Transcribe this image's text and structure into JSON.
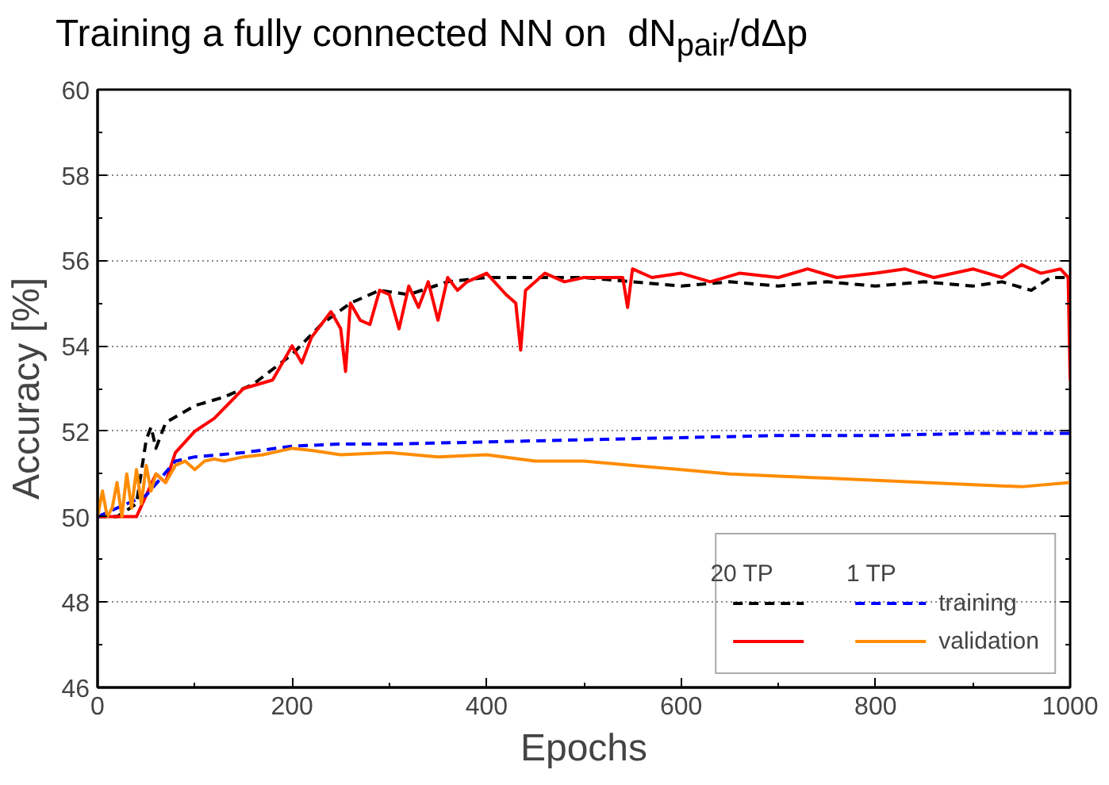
{
  "chart_data": {
    "type": "line",
    "title": "Training a fully connected NN on  dN$_{pair}$/dΔp",
    "xlabel": "Epochs",
    "ylabel": "Accuracy [%]",
    "xlim": [
      0,
      1000
    ],
    "ylim": [
      46,
      60
    ],
    "xticks": [
      0,
      200,
      400,
      600,
      800,
      1000
    ],
    "yticks": [
      46,
      48,
      50,
      52,
      54,
      56,
      58,
      60
    ],
    "grid": "y",
    "legend": "bottom right",
    "annotations": [
      "20 TP",
      "1 TP"
    ],
    "series": [
      {
        "color": "#000000",
        "line_style": "dashed",
        "x": [
          0,
          20,
          40,
          50,
          55,
          60,
          70,
          100,
          130,
          160,
          200,
          230,
          260,
          290,
          320,
          360,
          400,
          450,
          500,
          550,
          600,
          650,
          700,
          750,
          800,
          850,
          900,
          930,
          960,
          980,
          1000
        ],
        "values": [
          50,
          50,
          50.3,
          51.8,
          52.1,
          51.6,
          52.2,
          52.6,
          52.8,
          53.1,
          53.8,
          54.5,
          55.0,
          55.3,
          55.2,
          55.5,
          55.6,
          55.6,
          55.6,
          55.5,
          55.4,
          55.5,
          55.4,
          55.5,
          55.4,
          55.5,
          55.4,
          55.5,
          55.3,
          55.6,
          55.6
        ]
      },
      {
        "color": "#ff0000",
        "line_style": "solid",
        "x": [
          0,
          40,
          50,
          60,
          70,
          80,
          100,
          120,
          150,
          180,
          200,
          210,
          220,
          230,
          240,
          250,
          255,
          260,
          270,
          280,
          290,
          300,
          310,
          320,
          330,
          340,
          350,
          360,
          370,
          380,
          400,
          420,
          430,
          435,
          440,
          460,
          480,
          500,
          520,
          540,
          545,
          550,
          570,
          600,
          630,
          660,
          700,
          730,
          760,
          800,
          830,
          860,
          900,
          930,
          950,
          970,
          990,
          998,
          1000
        ],
        "values": [
          50,
          50,
          50.5,
          51.0,
          50.8,
          51.5,
          52.0,
          52.3,
          53.0,
          53.2,
          54.0,
          53.6,
          54.2,
          54.5,
          54.8,
          54.4,
          53.4,
          55.0,
          54.6,
          54.5,
          55.3,
          55.2,
          54.4,
          55.4,
          54.9,
          55.5,
          54.6,
          55.6,
          55.3,
          55.5,
          55.7,
          55.2,
          55.0,
          53.9,
          55.3,
          55.7,
          55.5,
          55.6,
          55.6,
          55.6,
          54.9,
          55.8,
          55.6,
          55.7,
          55.5,
          55.7,
          55.6,
          55.8,
          55.6,
          55.7,
          55.8,
          55.6,
          55.8,
          55.6,
          55.9,
          55.7,
          55.8,
          55.6,
          53.2
        ]
      },
      {
        "name": "training",
        "color": "#0000ff",
        "line_style": "dashed",
        "x": [
          0,
          50,
          80,
          100,
          150,
          200,
          250,
          300,
          400,
          500,
          600,
          700,
          800,
          900,
          1000
        ],
        "values": [
          50,
          50.5,
          51.3,
          51.4,
          51.5,
          51.65,
          51.7,
          51.7,
          51.75,
          51.8,
          51.85,
          51.9,
          51.9,
          51.95,
          51.95
        ]
      },
      {
        "name": "validation",
        "color": "#ff8c00",
        "line_style": "solid",
        "x": [
          0,
          5,
          10,
          15,
          20,
          25,
          30,
          35,
          40,
          45,
          50,
          55,
          60,
          70,
          80,
          90,
          100,
          110,
          120,
          130,
          150,
          170,
          200,
          220,
          250,
          300,
          350,
          400,
          450,
          500,
          550,
          600,
          650,
          700,
          750,
          800,
          850,
          900,
          950,
          1000
        ],
        "values": [
          50,
          50.6,
          50,
          50.2,
          50.8,
          50,
          51.0,
          50.2,
          51.1,
          50.3,
          51.2,
          50.6,
          51.0,
          50.8,
          51.2,
          51.3,
          51.1,
          51.3,
          51.35,
          51.3,
          51.4,
          51.45,
          51.6,
          51.55,
          51.45,
          51.5,
          51.4,
          51.45,
          51.3,
          51.3,
          51.2,
          51.1,
          51.0,
          50.95,
          50.9,
          50.85,
          50.8,
          50.75,
          50.7,
          50.8
        ]
      }
    ]
  }
}
